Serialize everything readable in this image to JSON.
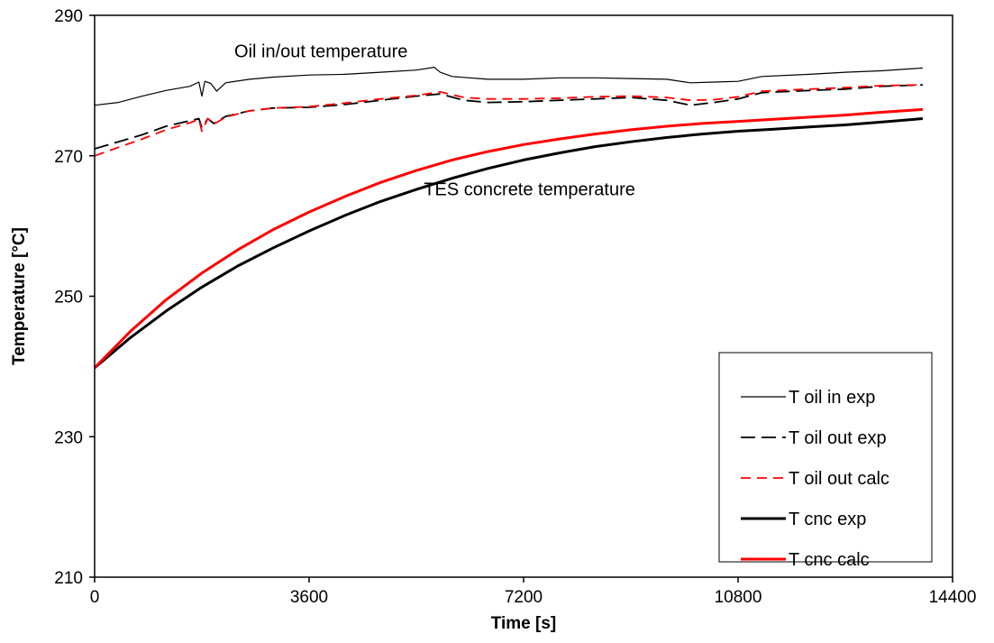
{
  "chart_data": {
    "type": "line",
    "xlabel": "Time [s]",
    "ylabel": "Temperature [°C]",
    "xlim": [
      0,
      14400
    ],
    "ylim": [
      210,
      290
    ],
    "xticks": [
      0,
      3600,
      7200,
      10800,
      14400
    ],
    "yticks": [
      210,
      230,
      250,
      270,
      290
    ],
    "grid": false,
    "legend_position": "bottom-right",
    "annotations": [
      {
        "text": "Oil in/out temperature",
        "x": 3800,
        "y": 284.0
      },
      {
        "text": "TES concrete temperature",
        "x": 7300,
        "y": 264.4
      }
    ],
    "series": [
      {
        "name": "T oil in exp",
        "color": "#000000",
        "style": "solid",
        "width": 1.2,
        "x": [
          0,
          400,
          800,
          1200,
          1600,
          1750,
          1800,
          1850,
          1950,
          2050,
          2200,
          2600,
          3000,
          3600,
          4200,
          4800,
          5400,
          5700,
          5800,
          6000,
          6600,
          7200,
          7800,
          8400,
          9000,
          9600,
          10000,
          10400,
          10800,
          11200,
          12000,
          12600,
          13200,
          13900
        ],
        "y": [
          277.2,
          277.6,
          278.5,
          279.3,
          279.9,
          280.5,
          278.5,
          280.6,
          280.3,
          279.2,
          280.4,
          280.9,
          281.2,
          281.5,
          281.6,
          281.9,
          282.2,
          282.6,
          281.9,
          281.3,
          280.9,
          280.9,
          281.1,
          281.1,
          281.0,
          280.9,
          280.4,
          280.5,
          280.6,
          281.3,
          281.6,
          281.9,
          282.1,
          282.5
        ]
      },
      {
        "name": "T oil out exp",
        "color": "#000000",
        "style": "long-dash",
        "width": 1.8,
        "x": [
          0,
          400,
          800,
          1200,
          1600,
          1750,
          1800,
          1900,
          2000,
          2200,
          2600,
          3000,
          3600,
          4200,
          4800,
          5400,
          5800,
          6200,
          6600,
          7200,
          7800,
          8400,
          9000,
          9600,
          10000,
          10400,
          10800,
          11200,
          12000,
          12600,
          13200,
          13900
        ],
        "y": [
          271.0,
          272.0,
          273.0,
          274.2,
          275.0,
          275.3,
          274.0,
          275.3,
          274.6,
          275.6,
          276.4,
          276.8,
          276.9,
          277.3,
          277.9,
          278.5,
          278.8,
          277.9,
          277.6,
          277.7,
          277.9,
          278.1,
          278.3,
          277.9,
          277.2,
          277.6,
          278.1,
          279.0,
          279.3,
          279.5,
          279.9,
          280.1
        ]
      },
      {
        "name": "T oil out calc",
        "color": "#ff0000",
        "style": "dash",
        "width": 1.8,
        "x": [
          0,
          400,
          800,
          1200,
          1600,
          1750,
          1800,
          1900,
          2000,
          2200,
          2600,
          3000,
          3600,
          4200,
          4800,
          5400,
          5800,
          6200,
          6600,
          7200,
          7800,
          8400,
          9000,
          9600,
          10000,
          10400,
          10800,
          11200,
          12000,
          12600,
          13200,
          13900
        ],
        "y": [
          270.0,
          271.2,
          272.4,
          273.7,
          274.7,
          275.2,
          273.5,
          275.3,
          274.5,
          275.5,
          276.4,
          276.8,
          277.0,
          277.5,
          278.1,
          278.6,
          279.1,
          278.3,
          278.1,
          278.1,
          278.2,
          278.4,
          278.5,
          278.3,
          277.9,
          278.0,
          278.4,
          279.2,
          279.5,
          279.7,
          280.0,
          280.1
        ]
      },
      {
        "name": "T cnc exp",
        "color": "#000000",
        "style": "solid",
        "width": 3,
        "x": [
          0,
          600,
          1200,
          1800,
          2400,
          3000,
          3600,
          4200,
          4800,
          5400,
          6000,
          6600,
          7200,
          7800,
          8400,
          9000,
          9600,
          10200,
          10800,
          11400,
          12000,
          12600,
          13200,
          13900
        ],
        "y": [
          239.8,
          244.1,
          247.9,
          251.3,
          254.3,
          256.9,
          259.3,
          261.5,
          263.5,
          265.2,
          266.8,
          268.2,
          269.4,
          270.4,
          271.3,
          272.0,
          272.6,
          273.1,
          273.5,
          273.8,
          274.1,
          274.4,
          274.8,
          275.3
        ]
      },
      {
        "name": "T cnc calc",
        "color": "#ff0000",
        "style": "solid",
        "width": 3,
        "x": [
          0,
          600,
          1200,
          1800,
          2400,
          3000,
          3600,
          4200,
          4800,
          5400,
          6000,
          6600,
          7200,
          7800,
          8400,
          9000,
          9600,
          10200,
          10800,
          11400,
          12000,
          12600,
          13200,
          13900
        ],
        "y": [
          239.8,
          245.0,
          249.5,
          253.3,
          256.6,
          259.5,
          262.0,
          264.2,
          266.2,
          267.9,
          269.4,
          270.6,
          271.6,
          272.4,
          273.1,
          273.7,
          274.2,
          274.6,
          274.9,
          275.2,
          275.5,
          275.8,
          276.2,
          276.6
        ]
      }
    ]
  }
}
